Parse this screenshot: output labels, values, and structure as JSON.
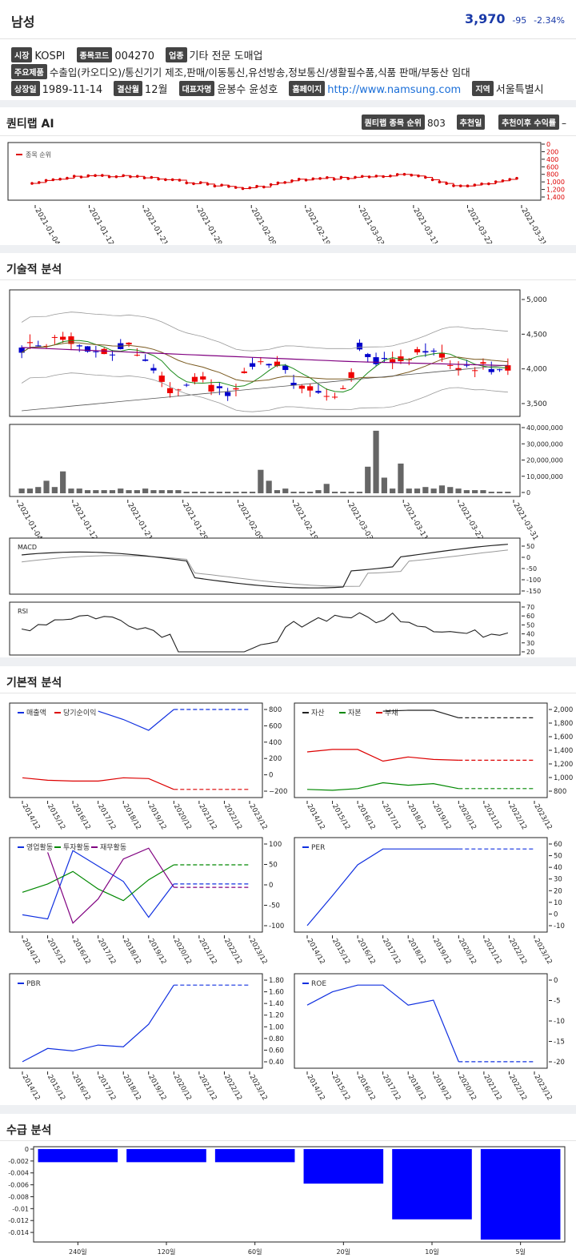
{
  "header": {
    "name": "남성",
    "price": "3,970",
    "change": "-95",
    "change_pct": "-2.34%"
  },
  "info": {
    "market_label": "시장",
    "market": "KOSPI",
    "code_label": "종목코드",
    "code": "004270",
    "industry_label": "업종",
    "industry": "기타 전문 도매업",
    "products_label": "주요제품",
    "products": "수출입(카오디오)/통신기기 제조,판매/이동통신,유선방송,정보통신/생활필수품,식품 판매/부동산 임대",
    "listed_label": "상장일",
    "listed": "1989-11-14",
    "settle_label": "결산월",
    "settle": "12월",
    "ceo_label": "대표자명",
    "ceo": "윤봉수 윤성호",
    "home_label": "홈페이지",
    "home": "http://www.namsung.com",
    "region_label": "지역",
    "region": "서울특별시"
  },
  "quant": {
    "title": "퀀티랩 AI",
    "rank_label": "퀀티랩 종목 순위",
    "rank": "803",
    "rec_date_label": "추천일",
    "rec_return_label": "추천이후 수익률",
    "rec_return": "–",
    "legend": "종목 순위",
    "yticks": [
      "0",
      "200",
      "400",
      "600",
      "800",
      "1,000",
      "1,200",
      "1,400"
    ],
    "dates": [
      "2021-01-04",
      "2021-01-12",
      "2021-01-21",
      "2021-01-29",
      "2021-02-09",
      "2021-02-19",
      "2021-03-03",
      "2021-03-11",
      "2021-03-22",
      "2021-03-31"
    ]
  },
  "technical": {
    "title": "기술적 분석",
    "price_ticks": [
      "5,000",
      "4,500",
      "4,000",
      "3,500"
    ],
    "volume_ticks": [
      "40,000,000",
      "30,000,000",
      "20,000,000",
      "10,000,000",
      "0"
    ],
    "dates": [
      "2021-01-04",
      "2021-01-12",
      "2021-01-21",
      "2021-01-29",
      "2021-02-09",
      "2021-02-19",
      "2021-03-03",
      "2021-03-11",
      "2021-03-22",
      "2021-03-31"
    ],
    "macd_label": "MACD",
    "macd_ticks": [
      "50",
      "0",
      "-50",
      "-100",
      "-150"
    ],
    "rsi_label": "RSI",
    "rsi_ticks": [
      "70",
      "60",
      "50",
      "40",
      "30",
      "20"
    ]
  },
  "fundamental": {
    "title": "기본적 분석",
    "years": [
      "2014/12",
      "2015/12",
      "2016/12",
      "2017/12",
      "2018/12",
      "2019/12",
      "2020/12",
      "2021/12",
      "2022/12",
      "2023/12"
    ],
    "c1": {
      "legend": [
        "매출액",
        "당기순이익"
      ],
      "ticks": [
        "800",
        "600",
        "400",
        "200",
        "0",
        "−200"
      ]
    },
    "c2": {
      "legend": [
        "자산",
        "자본",
        "부채"
      ],
      "ticks": [
        "2,000",
        "1,800",
        "1,600",
        "1,400",
        "1,200",
        "1,000",
        "800"
      ]
    },
    "c3": {
      "legend": [
        "영업활동",
        "투자활동",
        "재무활동"
      ],
      "ticks": [
        "100",
        "50",
        "0",
        "-50",
        "-100"
      ]
    },
    "c4": {
      "legend": [
        "PER"
      ],
      "ticks": [
        "60",
        "50",
        "40",
        "30",
        "20",
        "10",
        "0",
        "-10"
      ]
    },
    "c5": {
      "legend": [
        "PBR"
      ],
      "ticks": [
        "1.80",
        "1.60",
        "1.40",
        "1.20",
        "1.00",
        "0.80",
        "0.60",
        "0.40"
      ]
    },
    "c6": {
      "legend": [
        "ROE"
      ],
      "ticks": [
        "0",
        "-5",
        "-10",
        "-15",
        "-20"
      ]
    }
  },
  "supply": {
    "title": "수급 분석",
    "ticks": [
      "0",
      "-0.002",
      "-0.004",
      "-0.006",
      "-0.008",
      "-0.01",
      "-0.012",
      "-0.014"
    ],
    "categories": [
      "240일",
      "120일",
      "60일",
      "20일",
      "10일",
      "5일"
    ]
  },
  "chart_data": [
    {
      "type": "line",
      "title": "",
      "legend": [
        "종목 순위"
      ],
      "ylim": [
        1400,
        0
      ],
      "x": [
        "2021-01-04",
        "2021-01-12",
        "2021-01-21",
        "2021-01-29",
        "2021-02-09",
        "2021-02-19",
        "2021-03-03",
        "2021-03-11",
        "2021-03-22",
        "2021-03-31"
      ],
      "values": [
        1040,
        830,
        870,
        1020,
        1180,
        940,
        880,
        810,
        1130,
        920
      ]
    },
    {
      "type": "bar",
      "title": "수급 분석",
      "categories": [
        "240일",
        "120일",
        "60일",
        "20일",
        "10일",
        "5일"
      ],
      "values": [
        -0.0022,
        -0.0022,
        -0.0022,
        -0.0058,
        -0.0118,
        -0.0152
      ]
    }
  ]
}
